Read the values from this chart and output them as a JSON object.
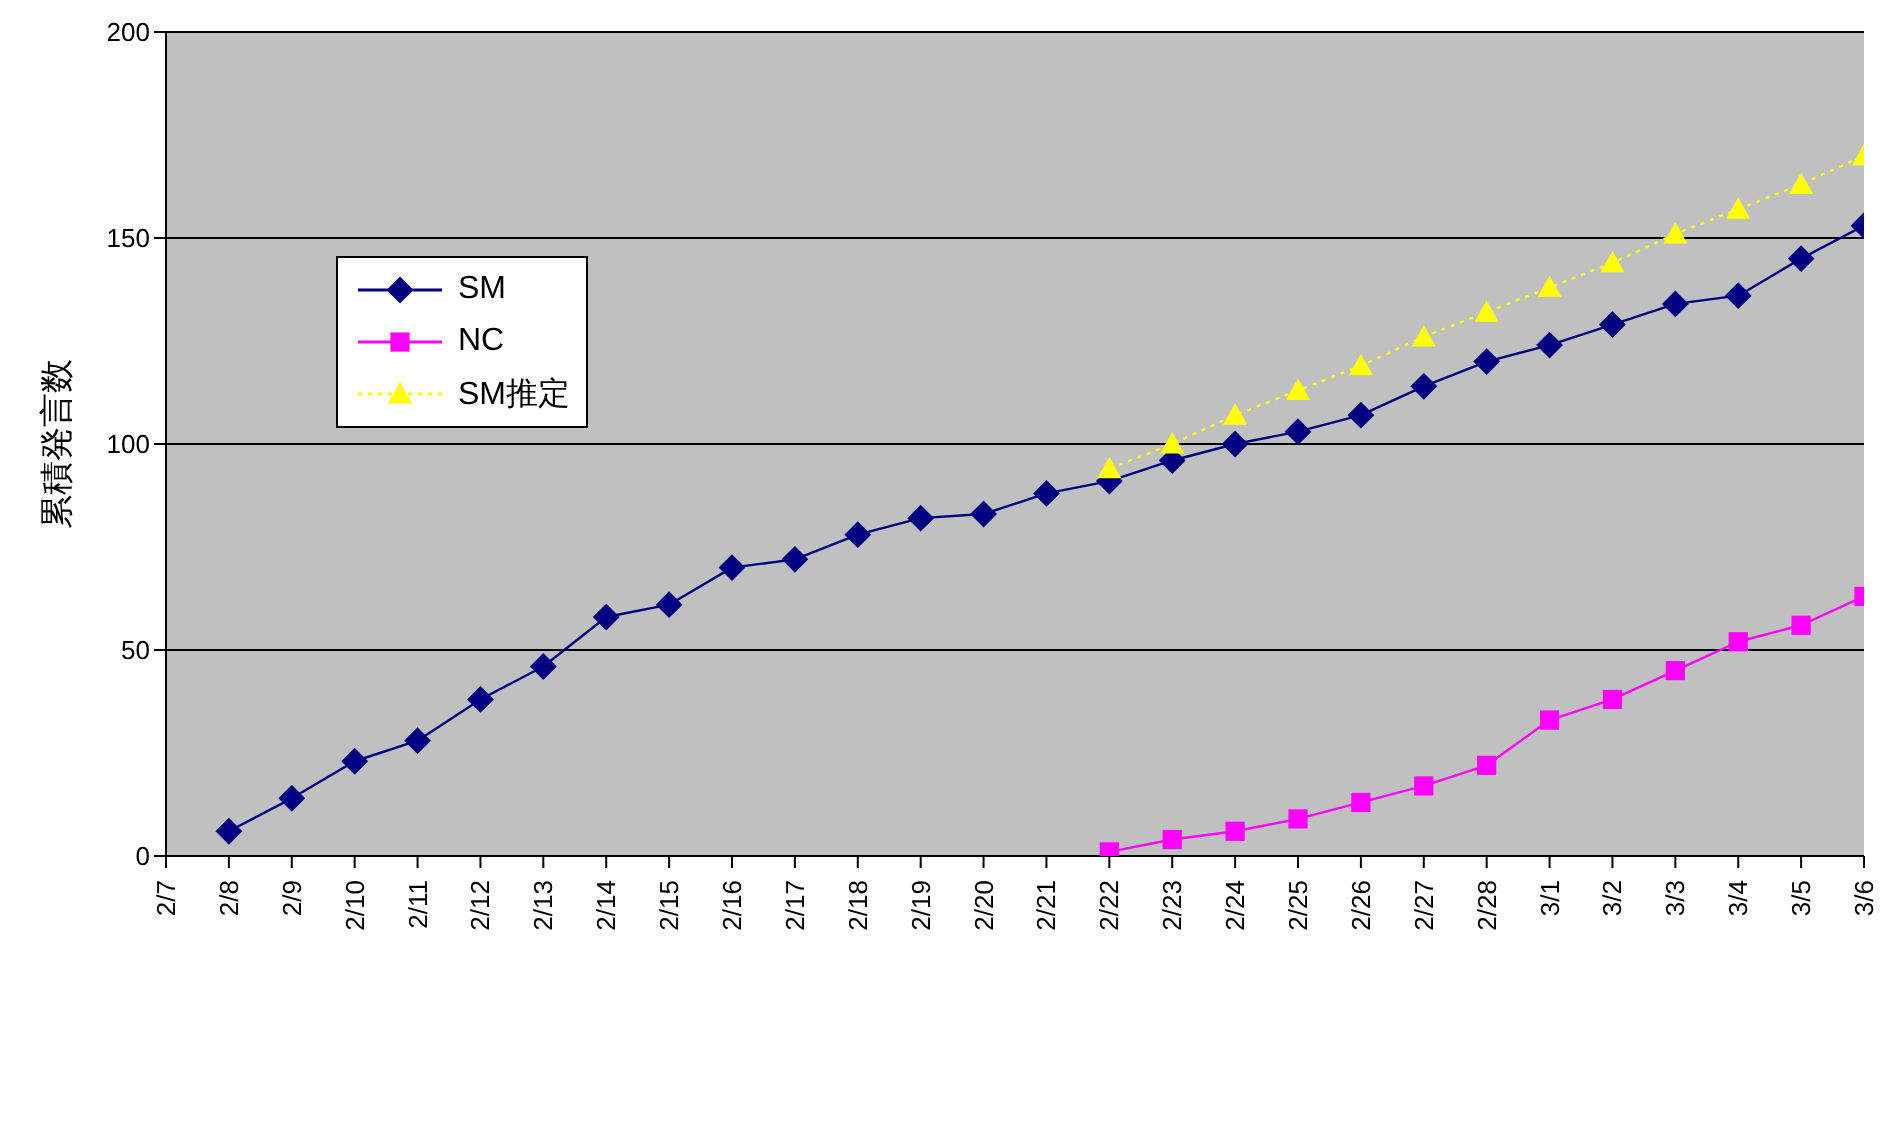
{
  "chart_data": {
    "type": "line",
    "ylabel": "累積発言数",
    "categories": [
      "2/7",
      "2/8",
      "2/9",
      "2/10",
      "2/11",
      "2/12",
      "2/13",
      "2/14",
      "2/15",
      "2/16",
      "2/17",
      "2/18",
      "2/19",
      "2/20",
      "2/21",
      "2/22",
      "2/23",
      "2/24",
      "2/25",
      "2/26",
      "2/27",
      "2/28",
      "3/1",
      "3/2",
      "3/3",
      "3/4",
      "3/5",
      "3/6"
    ],
    "series": [
      {
        "name": "SM",
        "color": "#000080",
        "marker": "diamond",
        "line_style": "solid",
        "values": [
          null,
          6,
          14,
          23,
          28,
          38,
          46,
          58,
          61,
          70,
          72,
          78,
          82,
          83,
          88,
          91,
          96,
          100,
          103,
          107,
          114,
          120,
          124,
          129,
          134,
          136,
          145,
          153
        ]
      },
      {
        "name": "NC",
        "color": "#ff00ff",
        "marker": "square",
        "line_style": "solid",
        "values": [
          null,
          null,
          null,
          null,
          null,
          null,
          null,
          null,
          null,
          null,
          null,
          null,
          null,
          null,
          null,
          1,
          4,
          6,
          9,
          13,
          17,
          22,
          33,
          38,
          45,
          52,
          56,
          63
        ]
      },
      {
        "name": "SM推定",
        "color": "#ffff00",
        "marker": "triangle",
        "line_style": "dotted",
        "values": [
          null,
          null,
          null,
          null,
          null,
          null,
          null,
          null,
          null,
          null,
          null,
          null,
          null,
          null,
          null,
          94,
          100,
          107,
          113,
          119,
          126,
          132,
          138,
          144,
          151,
          157,
          163,
          170
        ]
      }
    ],
    "ylim": [
      0,
      200
    ],
    "yticks": [
      0,
      50,
      100,
      150,
      200
    ],
    "grid": "y",
    "legend": "top left"
  }
}
